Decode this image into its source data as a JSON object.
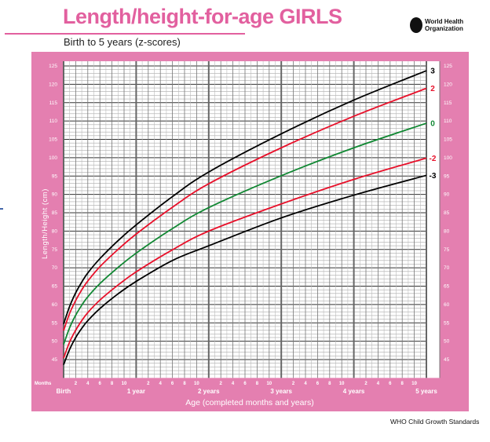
{
  "header": {
    "title": "Length/height-for-age GIRLS",
    "subtitle": "Birth to 5 years (z-scores)",
    "logo_text": "World Health Organization"
  },
  "footer": "WHO Child Growth Standards",
  "colors": {
    "pink": "#e47fb0",
    "title": "#e2609f",
    "z3": "#000000",
    "z2": "#e8102a",
    "z0": "#118833"
  },
  "chart_data": {
    "type": "line",
    "xlabel": "Age (completed months and years)",
    "ylabel": "Length/Height (cm)",
    "months_label": "Months",
    "xlim": [
      0,
      60
    ],
    "ylim": [
      40,
      125
    ],
    "y_ticks": [
      45,
      50,
      55,
      60,
      65,
      70,
      75,
      80,
      85,
      90,
      95,
      100,
      105,
      110,
      115,
      120,
      125
    ],
    "year_labels": [
      "Birth",
      "1 year",
      "2 years",
      "3 years",
      "4 years",
      "5 years"
    ],
    "month_ticks": [
      "2",
      "4",
      "6",
      "8",
      "10"
    ],
    "grid": true,
    "x_months": [
      0,
      1,
      2,
      3,
      4,
      6,
      9,
      12,
      18,
      24,
      36,
      48,
      60
    ],
    "series": [
      {
        "name": "3",
        "color": "#000000",
        "values": [
          54.7,
          59.5,
          63.2,
          66.1,
          68.6,
          72.5,
          77.4,
          81.7,
          89.4,
          96.1,
          106.5,
          115.7,
          123.7
        ]
      },
      {
        "name": "2",
        "color": "#e8102a",
        "values": [
          52.9,
          57.6,
          61.1,
          64.0,
          66.4,
          70.3,
          75.0,
          79.2,
          86.5,
          92.9,
          102.7,
          111.3,
          118.9
        ]
      },
      {
        "name": "0",
        "color": "#118833",
        "values": [
          49.1,
          53.7,
          57.1,
          59.8,
          62.1,
          65.7,
          70.1,
          74.0,
          80.7,
          86.4,
          95.1,
          102.7,
          109.4
        ]
      },
      {
        "name": "-2",
        "color": "#e8102a",
        "values": [
          45.4,
          49.8,
          53.0,
          55.6,
          57.8,
          61.2,
          65.3,
          68.9,
          74.9,
          80.0,
          87.4,
          94.1,
          99.9
        ]
      },
      {
        "name": "-3",
        "color": "#000000",
        "values": [
          43.6,
          47.8,
          51.0,
          53.5,
          55.6,
          58.9,
          62.9,
          66.3,
          72.0,
          76.0,
          83.6,
          89.8,
          95.2
        ]
      }
    ]
  }
}
